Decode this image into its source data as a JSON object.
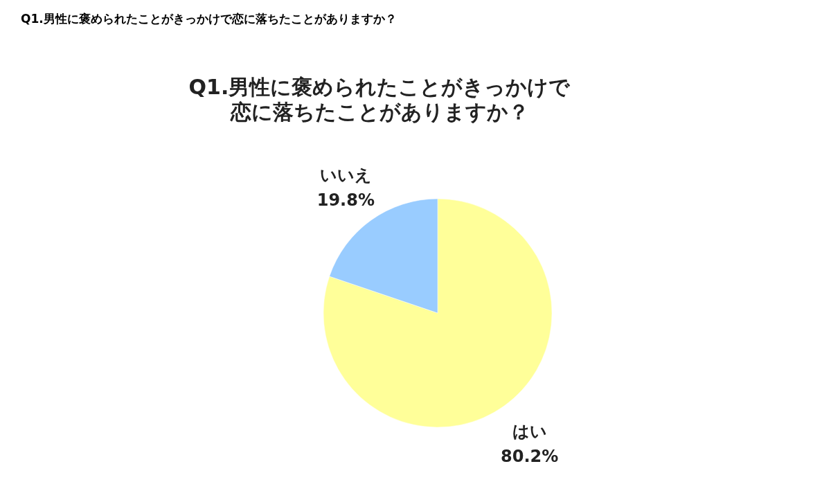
{
  "chart_data": {
    "type": "pie",
    "title": "Q1.男性に褒められたことがきっかけで恋に落ちたことがありますか？",
    "subtitle": "Q1.男性に褒められたことがきっかけで恋に落ちたことがありますか？",
    "categories": [
      "はい",
      "いいえ"
    ],
    "values": [
      80.2,
      19.8
    ],
    "colors": [
      "#ffff99",
      "#99ccff"
    ],
    "value_labels": [
      "80.2%",
      "19.8%"
    ]
  }
}
